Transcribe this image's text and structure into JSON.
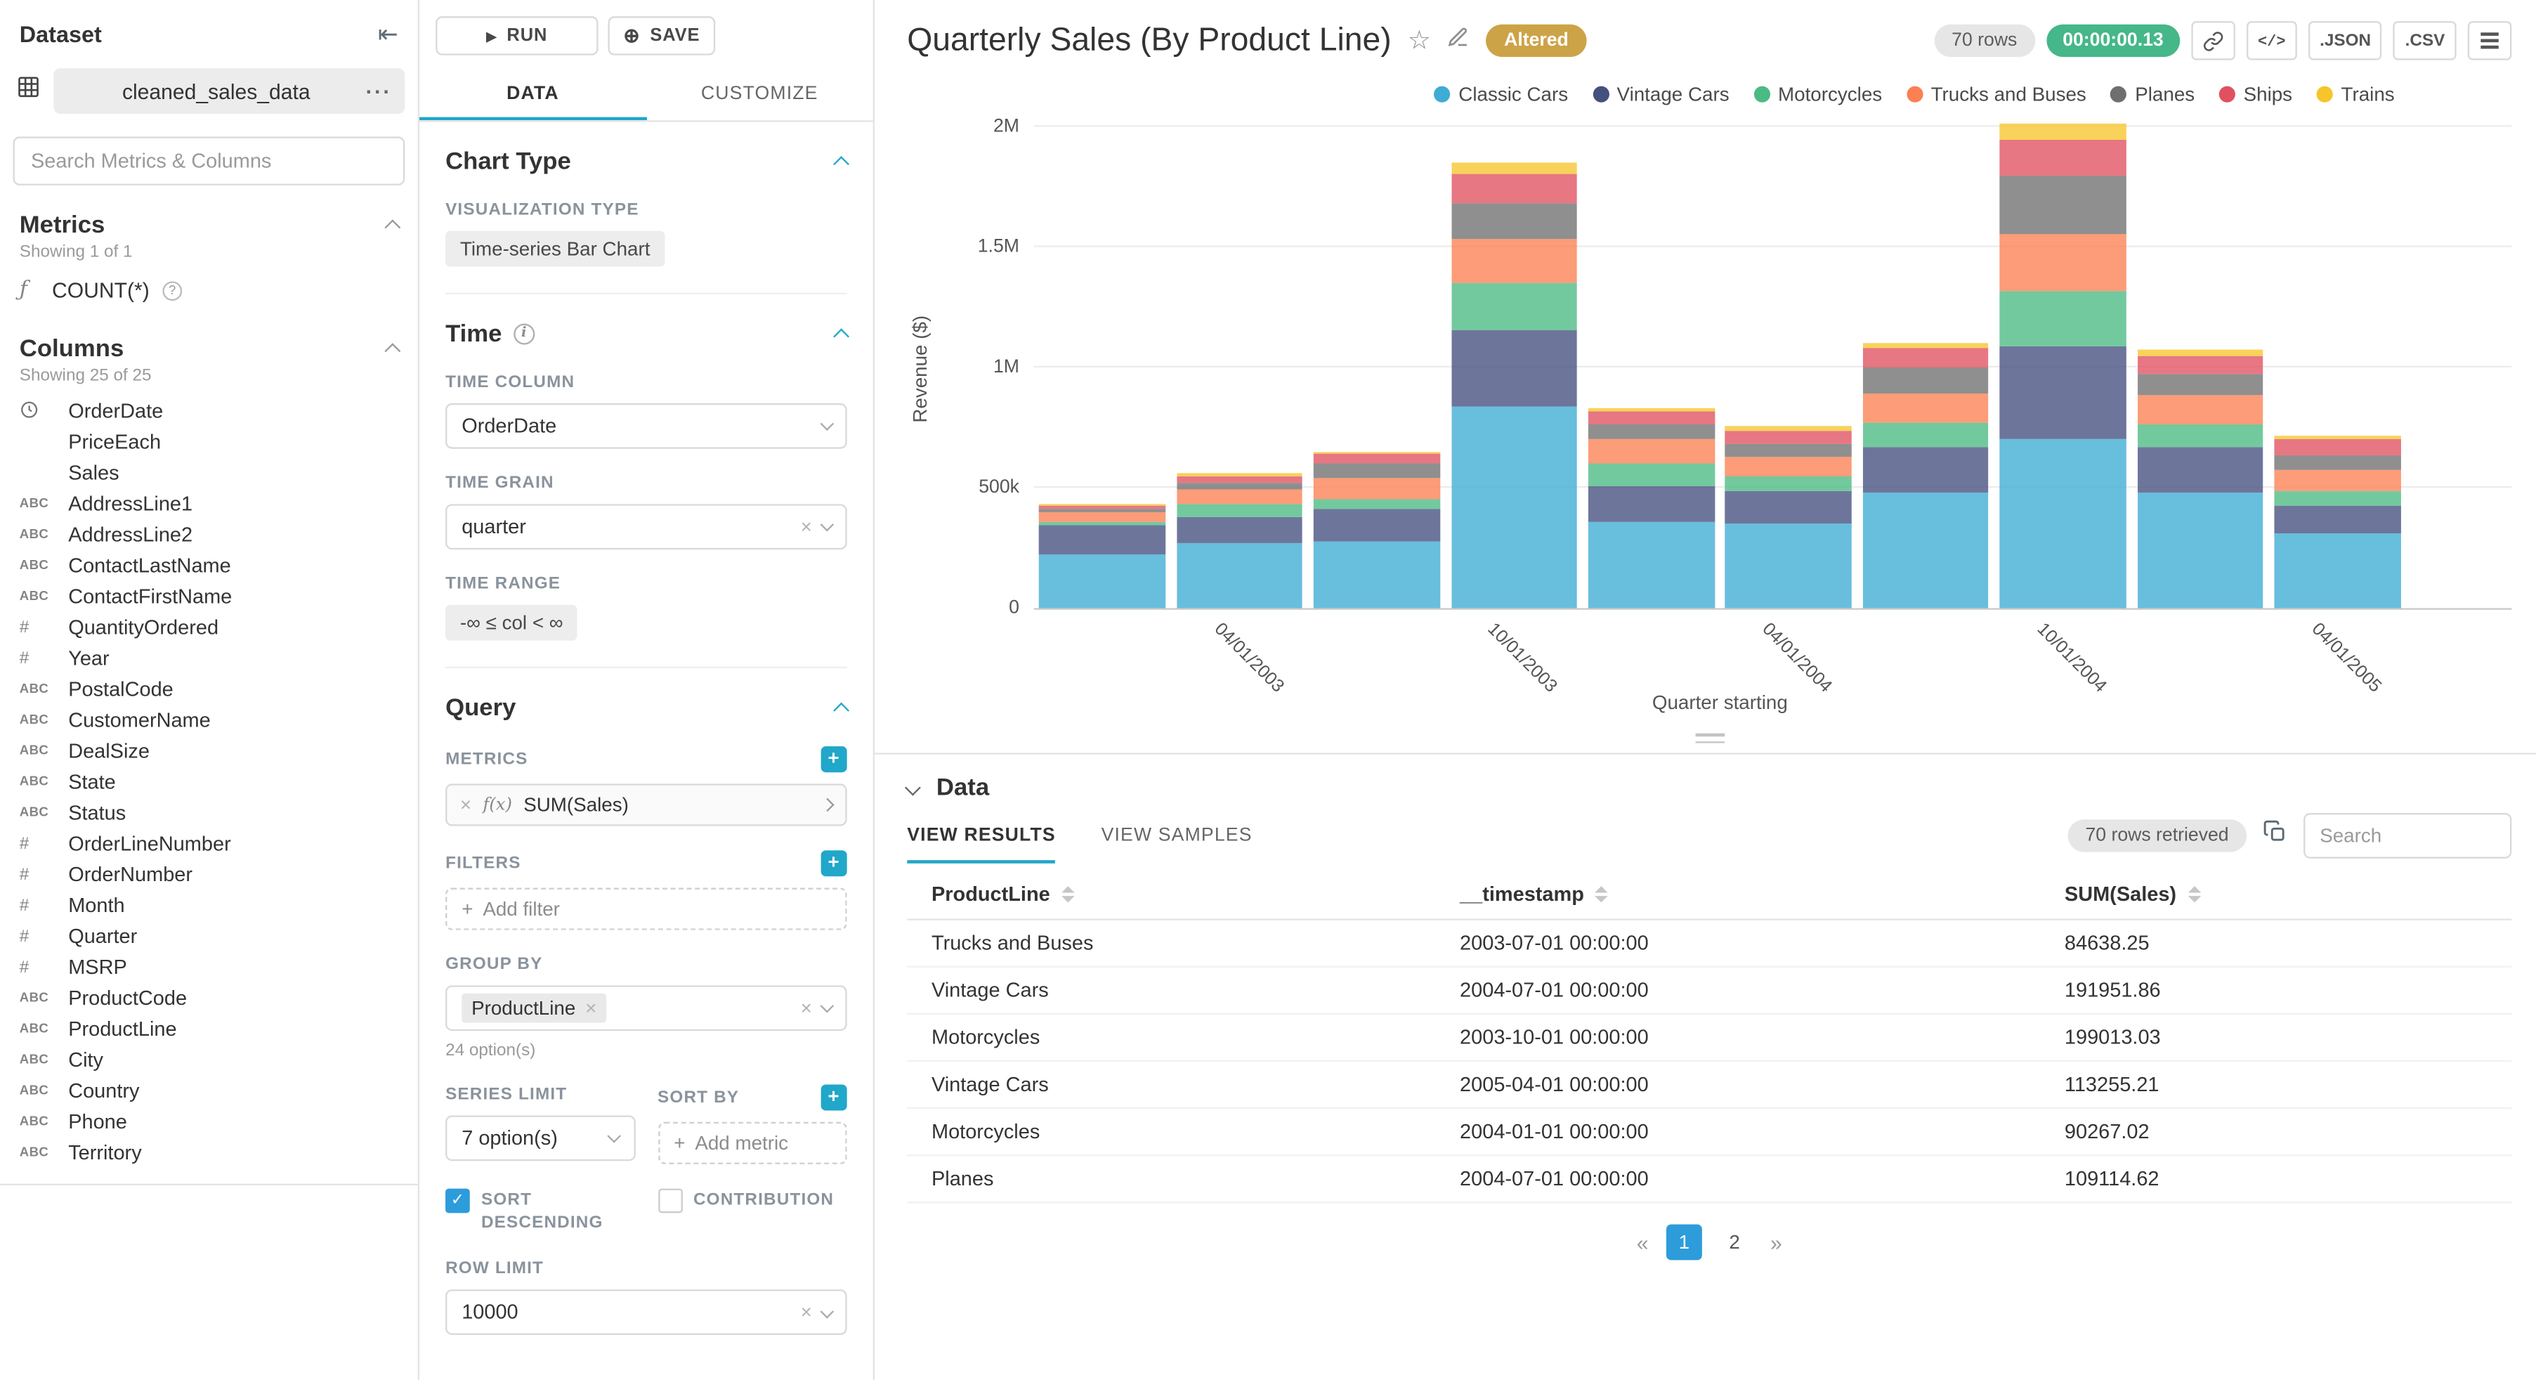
{
  "colors": {
    "accent": "#20A7C9",
    "timer_badge": "#45B789",
    "altered_badge": "#CDA348",
    "active_page": "#2D9CDB"
  },
  "sidebar": {
    "title": "Dataset",
    "dataset_name": "cleaned_sales_data",
    "search_placeholder": "Search Metrics & Columns",
    "metrics": {
      "header": "Metrics",
      "showing": "Showing 1 of 1",
      "items": [
        {
          "type": "function",
          "label": "COUNT(*)"
        }
      ]
    },
    "columns": {
      "header": "Columns",
      "showing": "Showing 25 of 25",
      "items": [
        {
          "type": "time",
          "label": "OrderDate"
        },
        {
          "type": "none",
          "label": "PriceEach"
        },
        {
          "type": "none",
          "label": "Sales"
        },
        {
          "type": "text",
          "label": "AddressLine1"
        },
        {
          "type": "text",
          "label": "AddressLine2"
        },
        {
          "type": "text",
          "label": "ContactLastName"
        },
        {
          "type": "text",
          "label": "ContactFirstName"
        },
        {
          "type": "num",
          "label": "QuantityOrdered"
        },
        {
          "type": "num",
          "label": "Year"
        },
        {
          "type": "text",
          "label": "PostalCode"
        },
        {
          "type": "text",
          "label": "CustomerName"
        },
        {
          "type": "text",
          "label": "DealSize"
        },
        {
          "type": "text",
          "label": "State"
        },
        {
          "type": "text",
          "label": "Status"
        },
        {
          "type": "num",
          "label": "OrderLineNumber"
        },
        {
          "type": "num",
          "label": "OrderNumber"
        },
        {
          "type": "num",
          "label": "Month"
        },
        {
          "type": "num",
          "label": "Quarter"
        },
        {
          "type": "num",
          "label": "MSRP"
        },
        {
          "type": "text",
          "label": "ProductCode"
        },
        {
          "type": "text",
          "label": "ProductLine"
        },
        {
          "type": "text",
          "label": "City"
        },
        {
          "type": "text",
          "label": "Country"
        },
        {
          "type": "text",
          "label": "Phone"
        },
        {
          "type": "text",
          "label": "Territory"
        }
      ]
    }
  },
  "controls": {
    "run_label": "RUN",
    "save_label": "SAVE",
    "tabs": [
      "DATA",
      "CUSTOMIZE"
    ],
    "chart_type": {
      "title": "Chart Type",
      "viz_label": "VISUALIZATION TYPE",
      "viz_value": "Time-series Bar Chart"
    },
    "time": {
      "title": "Time",
      "column_label": "TIME COLUMN",
      "column_value": "OrderDate",
      "grain_label": "TIME GRAIN",
      "grain_value": "quarter",
      "range_label": "TIME RANGE",
      "range_value": "-∞ ≤ col < ∞"
    },
    "query": {
      "title": "Query",
      "metrics_label": "METRICS",
      "metric_fx": "f(x)",
      "metric_value": "SUM(Sales)",
      "filters_label": "FILTERS",
      "add_filter_label": "Add filter",
      "group_by_label": "GROUP BY",
      "group_by_value": "ProductLine",
      "group_by_helper": "24 option(s)",
      "series_limit_label": "SERIES LIMIT",
      "series_limit_value": "7 option(s)",
      "sort_by_label": "SORT BY",
      "add_metric_label": "Add metric",
      "sort_descending_label": "SORT DESCENDING",
      "contribution_label": "CONTRIBUTION",
      "row_limit_label": "ROW LIMIT",
      "row_limit_value": "10000"
    }
  },
  "header": {
    "title": "Quarterly Sales (By Product Line)",
    "altered_badge": "Altered",
    "rows_badge": "70 rows",
    "timer_badge": "00:00:00.13",
    "json_label": ".JSON",
    "csv_label": ".CSV"
  },
  "chart_data": {
    "type": "bar",
    "stacked": true,
    "title": "Quarterly Sales (By Product Line)",
    "xlabel": "Quarter starting",
    "ylabel": "Revenue ($)",
    "ylim": [
      0,
      2000000
    ],
    "ytick_values": [
      0,
      500000,
      1000000,
      1500000,
      2000000
    ],
    "yticks": [
      "0",
      "500k",
      "1M",
      "1.5M",
      "2M"
    ],
    "x": [
      "01/01/2003",
      "04/01/2003",
      "07/01/2003",
      "10/01/2003",
      "01/01/2004",
      "04/01/2004",
      "07/01/2004",
      "10/01/2004",
      "01/01/2005",
      "04/01/2005"
    ],
    "x_label_indices": [
      1,
      3,
      5,
      7,
      9
    ],
    "legend_position": "top-right",
    "grid": true,
    "series": [
      {
        "name": "Classic Cars",
        "color": "#3EACD4",
        "values": [
          225000,
          270000,
          280000,
          835000,
          360000,
          350000,
          480000,
          700000,
          480000,
          310000
        ]
      },
      {
        "name": "Vintage Cars",
        "color": "#44507E",
        "values": [
          120000,
          110000,
          130000,
          320000,
          150000,
          140000,
          191951.86,
          390000,
          190000,
          113255.21
        ]
      },
      {
        "name": "Motorcycles",
        "color": "#4CBA83",
        "values": [
          15000,
          50000,
          45000,
          199013.03,
          90267.02,
          60000,
          100000,
          230000,
          95000,
          60000
        ]
      },
      {
        "name": "Trucks and Buses",
        "color": "#FB8052",
        "values": [
          40000,
          60000,
          84638.25,
          180000,
          100000,
          80000,
          120000,
          235000,
          120000,
          90000
        ]
      },
      {
        "name": "Planes",
        "color": "#6F6F6F",
        "values": [
          10000,
          30000,
          60000,
          150000,
          60000,
          55000,
          109114.62,
          240000,
          85000,
          65000
        ]
      },
      {
        "name": "Ships",
        "color": "#E0515F",
        "values": [
          15000,
          30000,
          40000,
          120000,
          55000,
          55000,
          80000,
          150000,
          80000,
          65000
        ]
      },
      {
        "name": "Trains",
        "color": "#F6C52C",
        "values": [
          8000,
          10000,
          10000,
          45000,
          18000,
          15000,
          20000,
          70000,
          25000,
          15000
        ]
      }
    ]
  },
  "results": {
    "section_title": "Data",
    "tabs": [
      "VIEW RESULTS",
      "VIEW SAMPLES"
    ],
    "rows_retrieved": "70 rows retrieved",
    "search_placeholder": "Search",
    "columns": [
      "ProductLine",
      "__timestamp",
      "SUM(Sales)"
    ],
    "rows": [
      [
        "Trucks and Buses",
        "2003-07-01 00:00:00",
        "84638.25"
      ],
      [
        "Vintage Cars",
        "2004-07-01 00:00:00",
        "191951.86"
      ],
      [
        "Motorcycles",
        "2003-10-01 00:00:00",
        "199013.03"
      ],
      [
        "Vintage Cars",
        "2005-04-01 00:00:00",
        "113255.21"
      ],
      [
        "Motorcycles",
        "2004-01-01 00:00:00",
        "90267.02"
      ],
      [
        "Planes",
        "2004-07-01 00:00:00",
        "109114.62"
      ]
    ],
    "pagination": {
      "prev": "«",
      "pages": [
        "1",
        "2"
      ],
      "active_page": "1",
      "next": "»"
    }
  }
}
